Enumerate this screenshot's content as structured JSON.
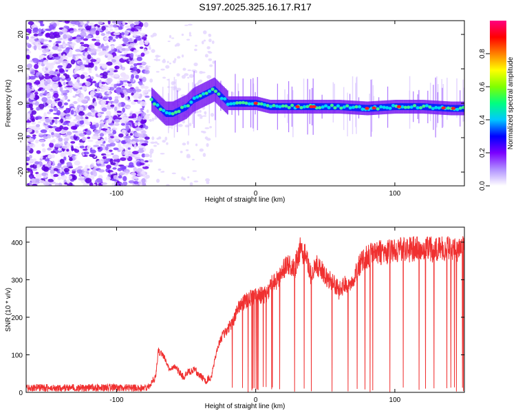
{
  "title": "S197.2025.325.16.17.R17",
  "chart_data": [
    {
      "type": "heatmap",
      "name": "spectrogram",
      "xlabel": "Height of straight line (km)",
      "ylabel": "Frequency (Hz)",
      "xlim": [
        -165,
        150
      ],
      "ylim": [
        -24,
        24
      ],
      "xticks": [
        -100,
        0,
        100
      ],
      "xtick_labels": [
        "-100",
        "0",
        "100"
      ],
      "yticks": [
        -20,
        -10,
        0,
        10,
        20
      ],
      "ytick_labels": [
        "-20",
        "-10",
        "0",
        "10",
        "20"
      ],
      "colorbar": {
        "label": "Normalized spectral amplitude",
        "range": [
          0,
          1
        ],
        "ticks": [
          0.0,
          0.2,
          0.4,
          0.6,
          0.8
        ],
        "tick_labels": [
          "0.0",
          "0.2",
          "0.4",
          "0.6",
          "0.8"
        ],
        "colors": [
          "#ffffff",
          "#b090ff",
          "#7a00ff",
          "#0000ff",
          "#00c8ff",
          "#00ff80",
          "#80ff00",
          "#ffff00",
          "#ff8000",
          "#ff0000",
          "#ff0080"
        ]
      },
      "noise_region_x": [
        -165,
        -78
      ],
      "transition_region_x": [
        -78,
        -30
      ],
      "signal_track": {
        "x": [
          -75,
          -70,
          -65,
          -60,
          -55,
          -50,
          -45,
          -40,
          -35,
          -30,
          -25,
          -20,
          -10,
          0,
          10,
          20,
          40,
          60,
          80,
          100,
          120,
          140,
          150
        ],
        "freq": [
          1,
          -1,
          -3,
          -3,
          -2,
          -1,
          1,
          2,
          3,
          4,
          2,
          0,
          0,
          0,
          -1,
          -1,
          -1,
          -1,
          -1.5,
          -1,
          -1,
          -1.5,
          -1.5
        ]
      }
    },
    {
      "type": "line",
      "name": "snr",
      "xlabel": "Height of straight line (km)",
      "ylabel": "SNR (10 * v/v)",
      "xlim": [
        -165,
        150
      ],
      "ylim": [
        0,
        440
      ],
      "xticks": [
        -100,
        0,
        100
      ],
      "xtick_labels": [
        "-100",
        "0",
        "100"
      ],
      "yticks": [
        0,
        100,
        200,
        300,
        400
      ],
      "ytick_labels": [
        "0",
        "100",
        "200",
        "300",
        "400"
      ],
      "color": "#f03030",
      "envelope": {
        "x": [
          -165,
          -78,
          -72,
          -70,
          -66,
          -62,
          -58,
          -52,
          -48,
          -44,
          -40,
          -36,
          -32,
          -28,
          -24,
          -20,
          -16,
          -12,
          -8,
          -4,
          0,
          4,
          8,
          12,
          16,
          20,
          24,
          28,
          32,
          36,
          40,
          44,
          48,
          52,
          56,
          60,
          64,
          68,
          72,
          76,
          80,
          84,
          88,
          92,
          96,
          100,
          104,
          108,
          112,
          116,
          120,
          124,
          128,
          132,
          136,
          140,
          144,
          148,
          150
        ],
        "snr": [
          12,
          12,
          40,
          110,
          95,
          60,
          70,
          40,
          55,
          60,
          45,
          30,
          40,
          110,
          150,
          170,
          190,
          230,
          240,
          250,
          255,
          260,
          260,
          290,
          300,
          330,
          340,
          330,
          380,
          360,
          310,
          340,
          320,
          300,
          290,
          270,
          285,
          290,
          320,
          350,
          360,
          370,
          375,
          370,
          375,
          380,
          380,
          380,
          380,
          385,
          380,
          385,
          380,
          385,
          385,
          385,
          380,
          385,
          380
        ]
      },
      "dropout_region_x": [
        -20,
        150
      ]
    }
  ]
}
